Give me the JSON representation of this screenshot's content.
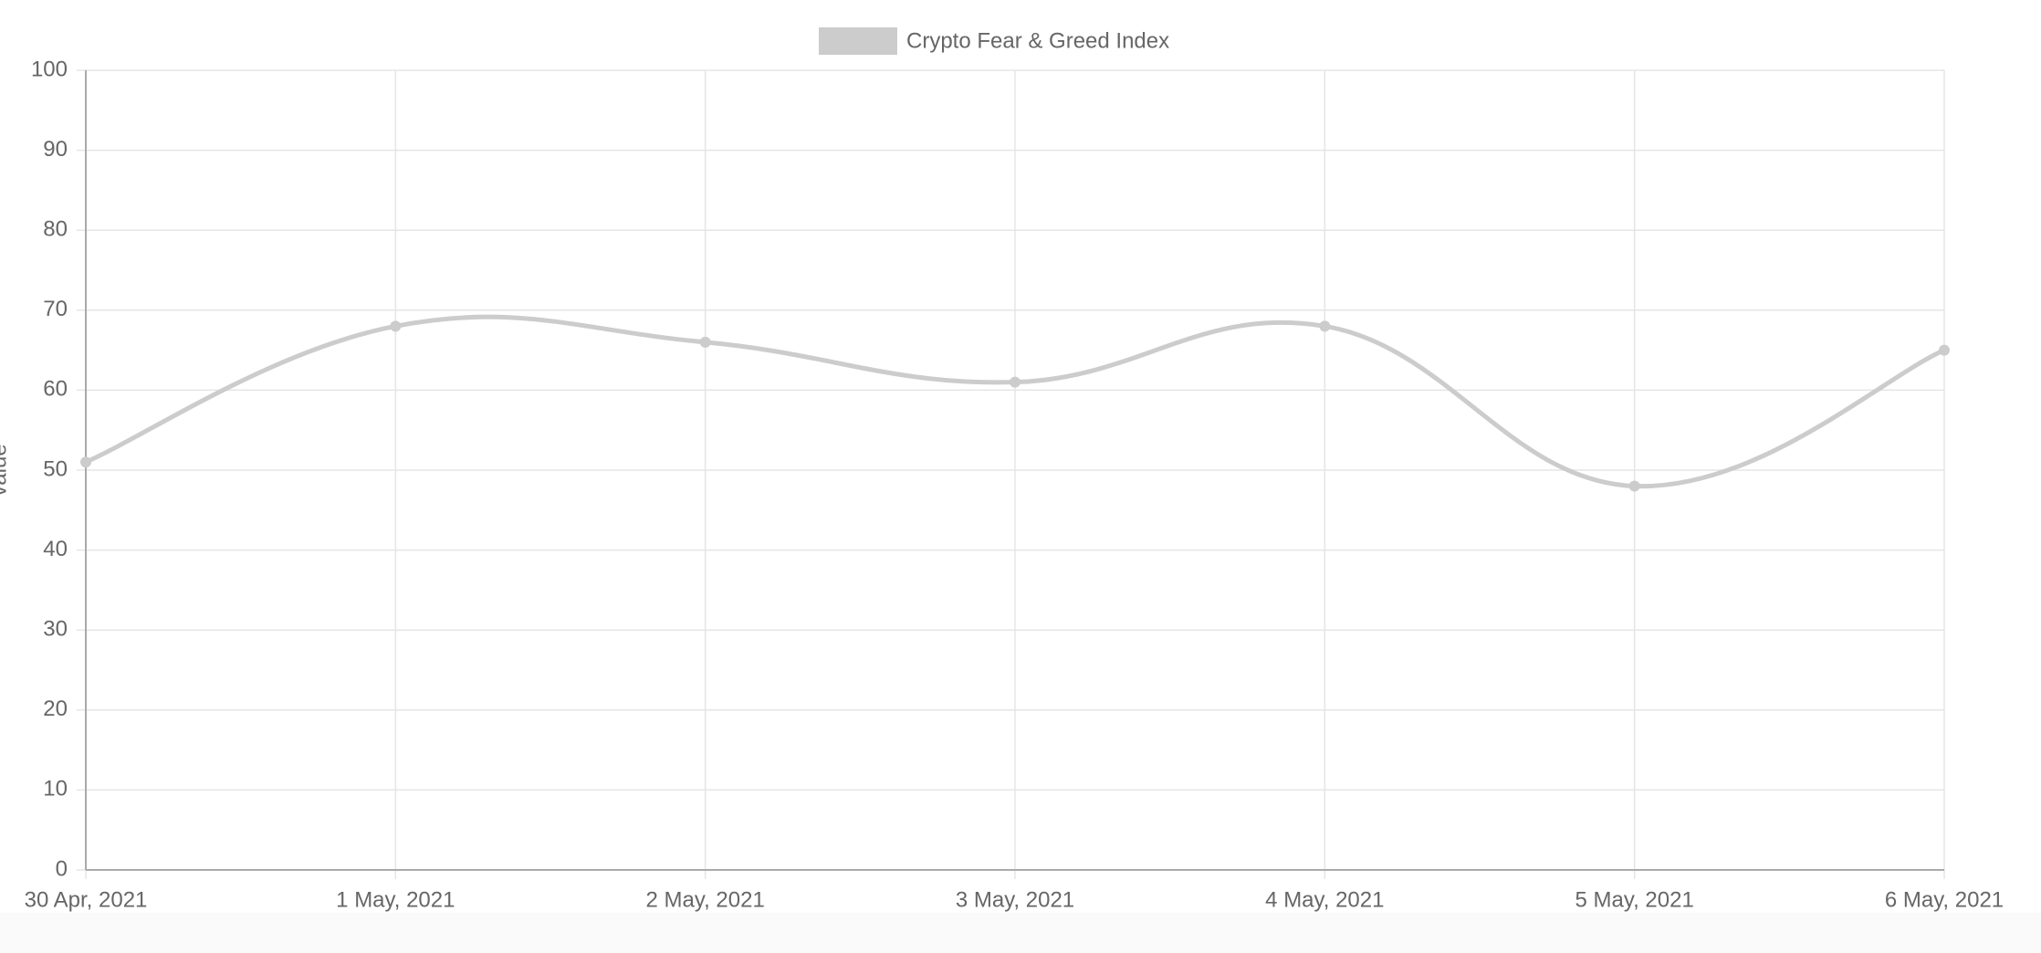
{
  "chart_data": {
    "type": "line",
    "y_label": "value",
    "categories": [
      "30 Apr, 2021",
      "1 May, 2021",
      "2 May, 2021",
      "3 May, 2021",
      "4 May, 2021",
      "5 May, 2021",
      "6 May, 2021"
    ],
    "series": [
      {
        "name": "Crypto Fear & Greed Index",
        "color": "#cccccc",
        "values": [
          51,
          68,
          66,
          61,
          68,
          48,
          65
        ]
      }
    ],
    "ylim": [
      0,
      100
    ],
    "yticks": [
      0,
      10,
      20,
      30,
      40,
      50,
      60,
      70,
      80,
      90,
      100
    ],
    "grid": true,
    "legend": "top"
  }
}
